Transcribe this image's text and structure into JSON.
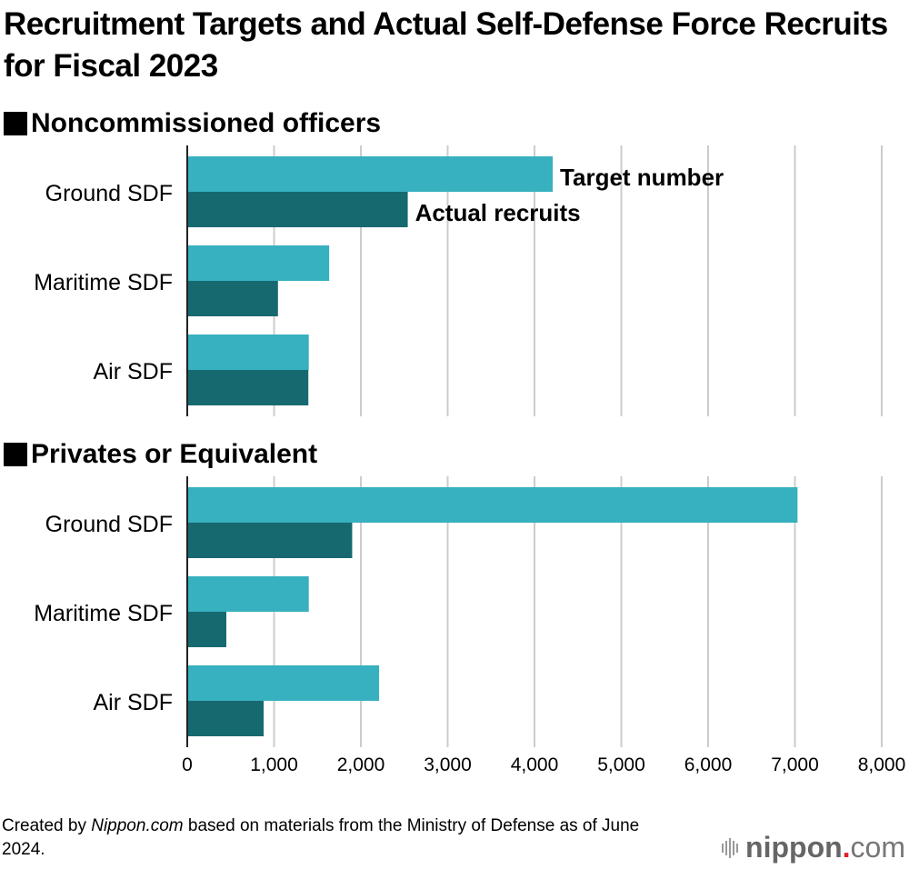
{
  "chart_data": [
    {
      "type": "bar",
      "orientation": "horizontal",
      "title": "Recruitment Targets and Actual Self-Defense Force Recruits for Fiscal 2023",
      "subtitle": "Noncommissioned officers",
      "categories": [
        "Ground SDF",
        "Maritime SDF",
        "Air SDF"
      ],
      "series": [
        {
          "name": "Target number",
          "values": [
            4210,
            1635,
            1400
          ],
          "color": "#37b0bf"
        },
        {
          "name": "Actual recruits",
          "values": [
            2540,
            1045,
            1395
          ],
          "color": "#176970"
        }
      ],
      "xlim": [
        0,
        8000
      ],
      "grid": true,
      "legend": "inline-labels"
    },
    {
      "type": "bar",
      "orientation": "horizontal",
      "subtitle": "Privates or Equivalent",
      "categories": [
        "Ground SDF",
        "Maritime SDF",
        "Air SDF"
      ],
      "series": [
        {
          "name": "Target number",
          "values": [
            7030,
            1400,
            2210
          ],
          "color": "#37b0bf"
        },
        {
          "name": "Actual recruits",
          "values": [
            1900,
            450,
            880
          ],
          "color": "#176970"
        }
      ],
      "xlim": [
        0,
        8000
      ],
      "xticks": [
        "0",
        "1,000",
        "2,000",
        "3,000",
        "4,000",
        "5,000",
        "6,000",
        "7,000",
        "8,000"
      ],
      "grid": true
    }
  ],
  "title": "Recruitment Targets and Actual Self-Defense Force Recruits for Fiscal 2023",
  "sections": {
    "nco": "Noncommissioned officers",
    "privates": "Privates or Equivalent"
  },
  "legend": {
    "target": "Target number",
    "actual": "Actual recruits"
  },
  "footer": {
    "prefix": "Created by ",
    "source_italic": "Nippon.com",
    "suffix": " based on materials from the Ministry of Defense as of June 2024."
  },
  "logo": {
    "brand": "nippon",
    "dot": ".",
    "tld": "com"
  }
}
